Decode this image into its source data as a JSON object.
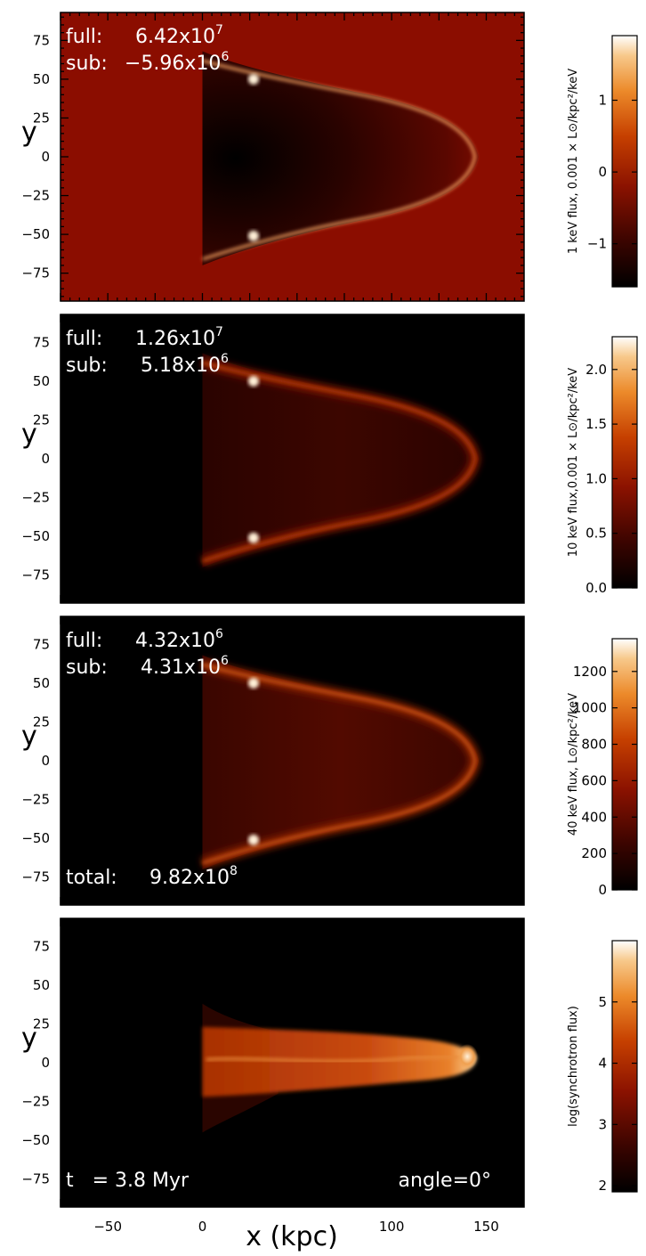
{
  "figure": {
    "xlabel": "x (kpc)",
    "ylabel": "y",
    "x_ticks": [
      -50,
      0,
      50,
      100,
      150
    ],
    "x_tick_labels": [
      "−50",
      "0",
      "",
      "100",
      "150"
    ],
    "x_range": [
      -75,
      170
    ],
    "y_ticks": [
      75,
      50,
      25,
      0,
      -25,
      -50,
      -75
    ],
    "y_tick_labels": [
      "75",
      "50",
      "25",
      "0",
      "−25",
      "−50",
      "−75"
    ],
    "y_range": [
      -93,
      93
    ]
  },
  "panels": [
    {
      "id": "1kev",
      "background": "#8b0d00",
      "colorbar": {
        "label": "1 keV flux, 0.001 × L⊙/kpc²/keV",
        "ticks": [
          "1",
          "0",
          "−1"
        ],
        "tick_values": [
          1,
          0,
          -1
        ],
        "range": [
          -1.6,
          1.9
        ]
      },
      "annotations": [
        {
          "prefix": "full:",
          "value": "6.42x10",
          "exp": "7"
        },
        {
          "prefix": "sub:",
          "value": "−5.96x10",
          "exp": "6"
        }
      ]
    },
    {
      "id": "10kev",
      "background": "#000000",
      "colorbar": {
        "label": "10 keV flux,0.001 × L⊙/kpc²/keV",
        "ticks": [
          "2.0",
          "1.5",
          "1.0",
          "0.5",
          "0.0"
        ],
        "tick_values": [
          2.0,
          1.5,
          1.0,
          0.5,
          0.0
        ],
        "range": [
          0,
          2.3
        ]
      },
      "annotations": [
        {
          "prefix": "full:",
          "value": "1.26x10",
          "exp": "7"
        },
        {
          "prefix": "sub:",
          "value": "5.18x10",
          "exp": "6"
        }
      ]
    },
    {
      "id": "40kev",
      "background": "#000000",
      "colorbar": {
        "label": "40 keV flux, L⊙/kpc²/keV",
        "ticks": [
          "1200",
          "1000",
          "800",
          "600",
          "400",
          "200",
          "0"
        ],
        "tick_values": [
          1200,
          1000,
          800,
          600,
          400,
          200,
          0
        ],
        "range": [
          0,
          1380
        ]
      },
      "annotations": [
        {
          "prefix": "full:",
          "value": "4.32x10",
          "exp": "6"
        },
        {
          "prefix": "sub:",
          "value": "4.31x10",
          "exp": "6"
        }
      ],
      "total": {
        "prefix": "total:",
        "value": "9.82x10",
        "exp": "8"
      }
    },
    {
      "id": "sync",
      "background": "#000000",
      "colorbar": {
        "label": "log(synchrotron flux)",
        "ticks": [
          "5",
          "4",
          "3",
          "2"
        ],
        "tick_values": [
          5,
          4,
          3,
          2
        ],
        "range": [
          1.9,
          6.0
        ]
      },
      "time": "t   = 3.8 Myr",
      "angle": "angle=0°"
    }
  ],
  "colors": {
    "cmap": [
      "#000000",
      "#3a0400",
      "#8b1200",
      "#c64000",
      "#ec8a2a",
      "#f7c88a",
      "#ffffff"
    ]
  }
}
